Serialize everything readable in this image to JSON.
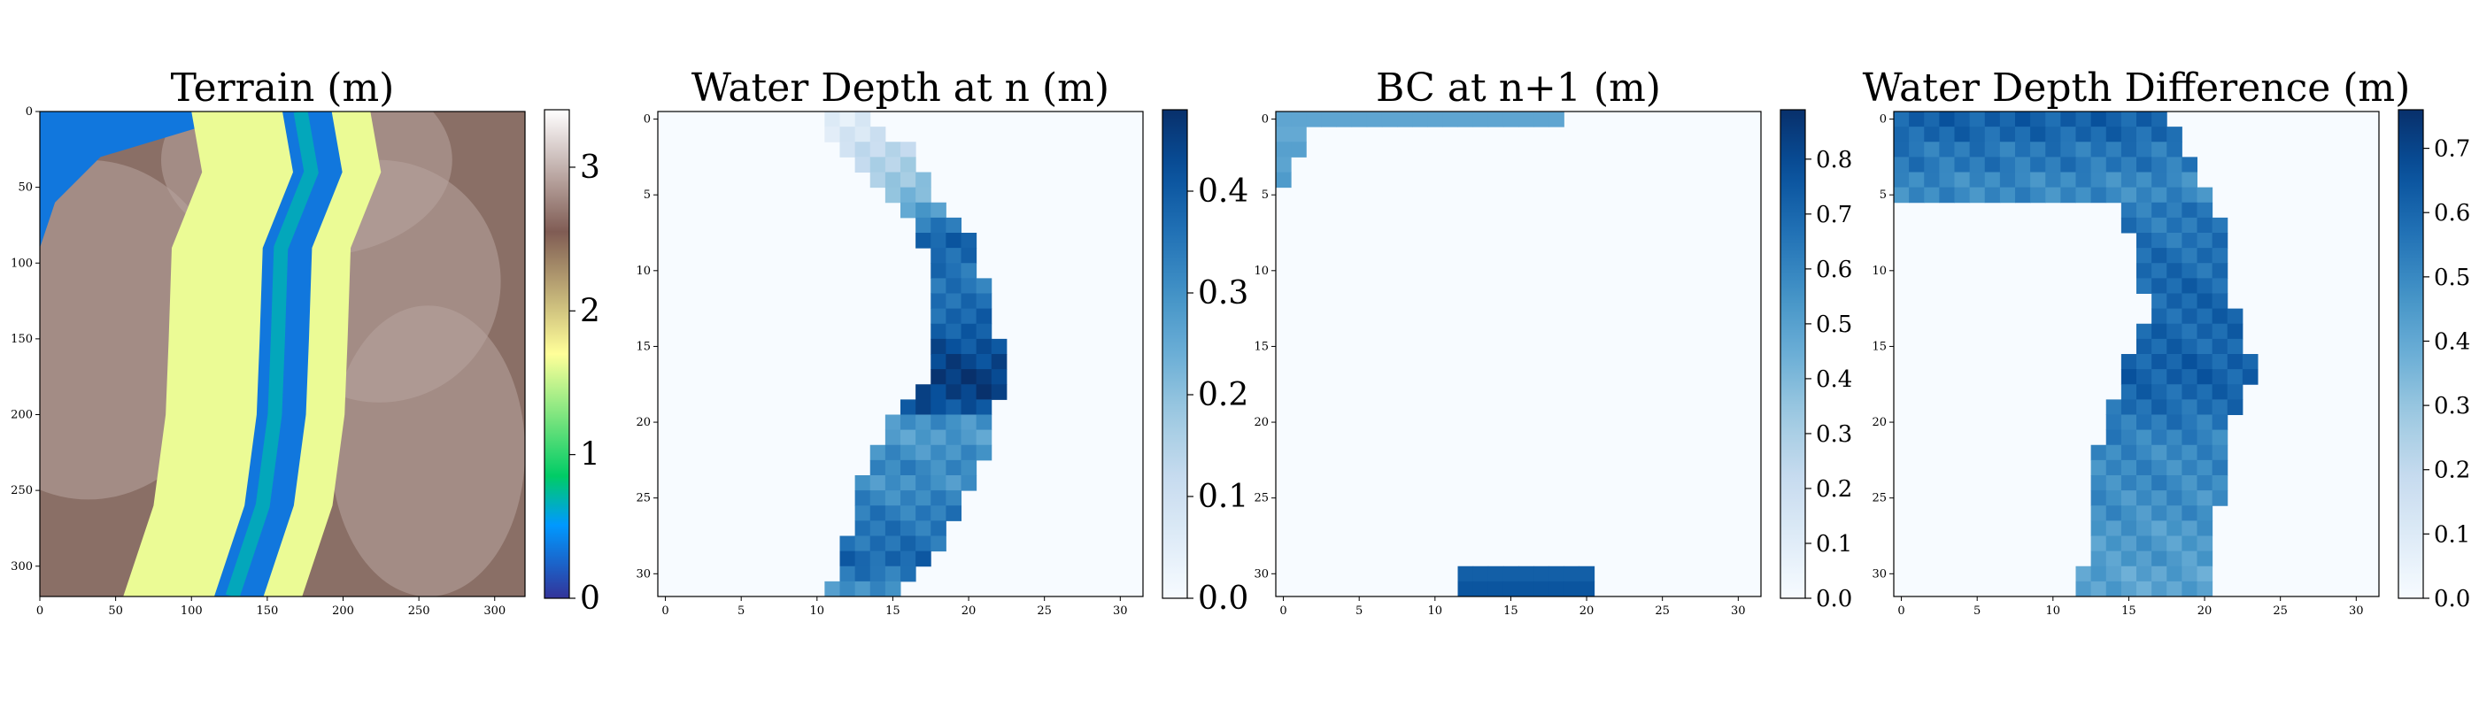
{
  "chart_data": [
    {
      "type": "heatmap",
      "title": "Terrain (m)",
      "colormap": "terrain",
      "xlim": [
        0,
        320
      ],
      "ylim": [
        320,
        0
      ],
      "xticks": [
        "0",
        "50",
        "100",
        "150",
        "200",
        "250",
        "300"
      ],
      "yticks": [
        "0",
        "50",
        "100",
        "150",
        "200",
        "250",
        "300"
      ],
      "colorbar": {
        "range": [
          0,
          3.4
        ],
        "ticks": [
          "0",
          "1",
          "2",
          "3"
        ]
      },
      "channel_path_x_at_y": [
        [
          0,
          185
        ],
        [
          40,
          192
        ],
        [
          90,
          172
        ],
        [
          150,
          170
        ],
        [
          200,
          168
        ],
        [
          260,
          160
        ],
        [
          320,
          140
        ]
      ],
      "channel_width": 50,
      "blue_region_path_x_at_y": [
        [
          0,
          140
        ],
        [
          30,
          40
        ],
        [
          60,
          10
        ],
        [
          90,
          0
        ]
      ]
    },
    {
      "type": "heatmap",
      "title": "Water Depth at n (m)",
      "colormap": "Blues",
      "xlim": [
        0,
        32
      ],
      "ylim": [
        32,
        0
      ],
      "xticks": [
        "0",
        "5",
        "10",
        "15",
        "20",
        "25",
        "30"
      ],
      "yticks": [
        "0",
        "5",
        "10",
        "15",
        "20",
        "25",
        "30"
      ],
      "colorbar": {
        "range": [
          0,
          0.48
        ],
        "ticks": [
          "0.0",
          "0.1",
          "0.2",
          "0.3",
          "0.4"
        ]
      },
      "row_extents": [
        [
          0,
          11,
          14,
          0.05
        ],
        [
          1,
          11,
          15,
          0.08
        ],
        [
          2,
          12,
          17,
          0.12
        ],
        [
          3,
          13,
          17,
          0.15
        ],
        [
          4,
          14,
          18,
          0.18
        ],
        [
          5,
          15,
          18,
          0.22
        ],
        [
          6,
          16,
          19,
          0.28
        ],
        [
          7,
          17,
          20,
          0.35
        ],
        [
          8,
          17,
          21,
          0.4
        ],
        [
          9,
          18,
          21,
          0.38
        ],
        [
          10,
          18,
          21,
          0.36
        ],
        [
          11,
          18,
          22,
          0.35
        ],
        [
          12,
          18,
          22,
          0.36
        ],
        [
          13,
          18,
          22,
          0.38
        ],
        [
          14,
          18,
          22,
          0.4
        ],
        [
          15,
          18,
          23,
          0.42
        ],
        [
          16,
          18,
          23,
          0.44
        ],
        [
          17,
          18,
          23,
          0.46
        ],
        [
          18,
          17,
          23,
          0.45
        ],
        [
          19,
          16,
          22,
          0.42
        ],
        [
          20,
          15,
          22,
          0.3
        ],
        [
          21,
          15,
          22,
          0.28
        ],
        [
          22,
          14,
          22,
          0.3
        ],
        [
          23,
          14,
          21,
          0.32
        ],
        [
          24,
          13,
          21,
          0.3
        ],
        [
          25,
          13,
          20,
          0.32
        ],
        [
          26,
          13,
          20,
          0.34
        ],
        [
          27,
          13,
          19,
          0.35
        ],
        [
          28,
          12,
          19,
          0.36
        ],
        [
          29,
          12,
          18,
          0.38
        ],
        [
          30,
          12,
          17,
          0.35
        ],
        [
          31,
          11,
          16,
          0.3
        ]
      ]
    },
    {
      "type": "heatmap",
      "title": "BC at n+1 (m)",
      "colormap": "Blues",
      "xlim": [
        0,
        32
      ],
      "ylim": [
        32,
        0
      ],
      "xticks": [
        "0",
        "5",
        "10",
        "15",
        "20",
        "25",
        "30"
      ],
      "yticks": [
        "0",
        "5",
        "10",
        "15",
        "20",
        "25",
        "30"
      ],
      "colorbar": {
        "range": [
          0,
          0.89
        ],
        "ticks": [
          "0.0",
          "0.1",
          "0.2",
          "0.3",
          "0.4",
          "0.5",
          "0.6",
          "0.7",
          "0.8"
        ]
      },
      "blocks": [
        {
          "x": [
            0,
            19
          ],
          "y": [
            0,
            1
          ],
          "value": 0.55
        },
        {
          "x": [
            0,
            2
          ],
          "y": [
            1,
            3
          ],
          "value": 0.5
        },
        {
          "x": [
            0,
            1
          ],
          "y": [
            3,
            5
          ],
          "value": 0.45
        },
        {
          "x": [
            12,
            21
          ],
          "y": [
            30,
            32
          ],
          "value": 0.8
        }
      ]
    },
    {
      "type": "heatmap",
      "title": "Water Depth Difference (m)",
      "colormap": "Blues",
      "xlim": [
        0,
        32
      ],
      "ylim": [
        32,
        0
      ],
      "xticks": [
        "0",
        "5",
        "10",
        "15",
        "20",
        "25",
        "30"
      ],
      "yticks": [
        "0",
        "5",
        "10",
        "15",
        "20",
        "25",
        "30"
      ],
      "colorbar": {
        "range": [
          0,
          0.76
        ],
        "ticks": [
          "0.0",
          "0.1",
          "0.2",
          "0.3",
          "0.4",
          "0.5",
          "0.6",
          "0.7"
        ]
      },
      "row_extents": [
        [
          0,
          0,
          18,
          0.62
        ],
        [
          1,
          0,
          19,
          0.6
        ],
        [
          2,
          0,
          19,
          0.55
        ],
        [
          3,
          0,
          20,
          0.55
        ],
        [
          4,
          0,
          20,
          0.5
        ],
        [
          5,
          0,
          21,
          0.5
        ],
        [
          6,
          15,
          21,
          0.55
        ],
        [
          7,
          15,
          22,
          0.55
        ],
        [
          8,
          16,
          22,
          0.56
        ],
        [
          9,
          16,
          22,
          0.58
        ],
        [
          10,
          16,
          22,
          0.58
        ],
        [
          11,
          16,
          22,
          0.6
        ],
        [
          12,
          17,
          22,
          0.6
        ],
        [
          13,
          17,
          23,
          0.6
        ],
        [
          14,
          16,
          23,
          0.6
        ],
        [
          15,
          16,
          23,
          0.6
        ],
        [
          16,
          15,
          24,
          0.62
        ],
        [
          17,
          15,
          24,
          0.62
        ],
        [
          18,
          15,
          23,
          0.6
        ],
        [
          19,
          14,
          23,
          0.58
        ],
        [
          20,
          14,
          22,
          0.55
        ],
        [
          21,
          14,
          22,
          0.52
        ],
        [
          22,
          13,
          22,
          0.5
        ],
        [
          23,
          13,
          22,
          0.5
        ],
        [
          24,
          13,
          22,
          0.5
        ],
        [
          25,
          13,
          22,
          0.48
        ],
        [
          26,
          13,
          21,
          0.48
        ],
        [
          27,
          13,
          21,
          0.45
        ],
        [
          28,
          13,
          21,
          0.45
        ],
        [
          29,
          13,
          21,
          0.45
        ],
        [
          30,
          12,
          21,
          0.42
        ],
        [
          31,
          12,
          21,
          0.42
        ]
      ]
    }
  ]
}
